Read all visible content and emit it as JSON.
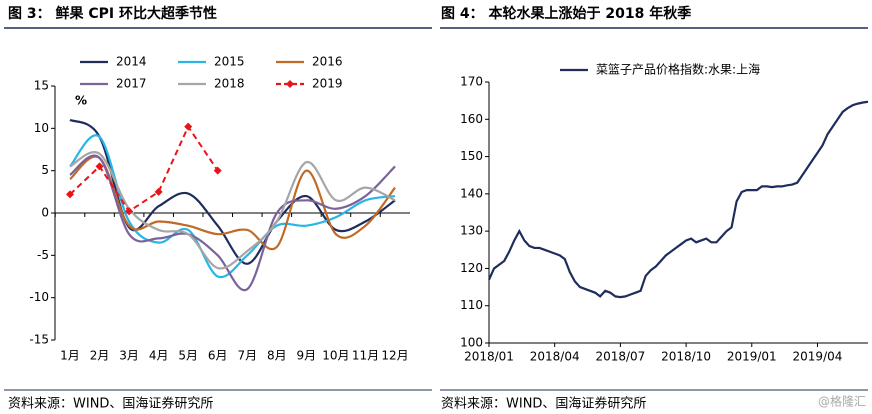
{
  "chart_data": [
    {
      "type": "line",
      "title": "图 3： 鲜果 CPI 环比大超季节性",
      "annotation": "%",
      "categories": [
        "1月",
        "2月",
        "3月",
        "4月",
        "5月",
        "6月",
        "7月",
        "8月",
        "9月",
        "10月",
        "11月",
        "12月"
      ],
      "ylim": [
        -15,
        15
      ],
      "yticks": [
        15,
        10,
        5,
        0,
        -5,
        -10,
        -15
      ],
      "series": [
        {
          "name": "2014",
          "color": "#1f2d5c",
          "values": [
            11,
            9,
            -1.7,
            0.8,
            2.3,
            -1.5,
            -6,
            -1,
            2,
            -2,
            -1,
            1.5
          ]
        },
        {
          "name": "2015",
          "color": "#29b5e8",
          "values": [
            5.5,
            9,
            -1,
            -3.5,
            -2,
            -7.5,
            -5,
            -1.5,
            -1.5,
            -0.5,
            1.5,
            2
          ]
        },
        {
          "name": "2016",
          "color": "#c06a26",
          "values": [
            4,
            6.5,
            -1.5,
            -1,
            -1.5,
            -2.5,
            -2,
            -4,
            5,
            -2.5,
            -1.5,
            3
          ]
        },
        {
          "name": "2017",
          "color": "#7b6399",
          "values": [
            4.5,
            6.5,
            -2.5,
            -3,
            -2.5,
            -5,
            -9,
            0,
            1.5,
            0.5,
            2,
            5.5
          ]
        },
        {
          "name": "2018",
          "color": "#a6a6a6",
          "values": [
            5.5,
            7,
            0.5,
            -2,
            -2.5,
            -6.5,
            -4.5,
            -1,
            6,
            1.5,
            3,
            1.5
          ]
        },
        {
          "name": "2019",
          "color": "#e8141a",
          "dashed": true,
          "markers": true,
          "values": [
            2.2,
            5.5,
            0.2,
            2.5,
            10.2,
            5,
            null,
            null,
            null,
            null,
            null,
            null
          ]
        }
      ],
      "source": "资料来源：WIND、国海证券研究所"
    },
    {
      "type": "line",
      "title": "图 4： 本轮水果上涨始于 2018 年秋季",
      "categories": [
        "2018/01",
        null,
        null,
        null,
        null,
        null,
        null,
        null,
        null,
        null,
        null,
        null,
        null,
        "2018/04",
        null,
        null,
        null,
        null,
        null,
        null,
        null,
        null,
        null,
        null,
        null,
        null,
        "2018/07",
        null,
        null,
        null,
        null,
        null,
        null,
        null,
        null,
        null,
        null,
        null,
        null,
        "2018/10",
        null,
        null,
        null,
        null,
        null,
        null,
        null,
        null,
        null,
        null,
        null,
        null,
        "2019/01",
        null,
        null,
        null,
        null,
        null,
        null,
        null,
        null,
        null,
        null,
        null,
        null,
        "2019/04",
        null,
        null,
        null,
        null,
        null,
        null,
        null,
        null,
        null,
        null
      ],
      "ylim": [
        100,
        170
      ],
      "yticks": [
        100,
        110,
        120,
        130,
        140,
        150,
        160,
        170
      ],
      "series": [
        {
          "name": "菜篮子产品价格指数:水果:上海",
          "color": "#1f2d5c",
          "values": [
            117,
            120,
            121,
            122,
            124.5,
            127.5,
            130,
            127.5,
            126,
            125.5,
            125.5,
            125,
            124.5,
            124,
            123.5,
            122.5,
            119,
            116.5,
            115,
            114.5,
            114,
            113.5,
            112.5,
            114,
            113.5,
            112.5,
            112.3,
            112.5,
            113,
            113.5,
            114,
            118,
            119.5,
            120.5,
            122,
            123.5,
            124.5,
            125.5,
            126.5,
            127.5,
            128,
            127,
            127.5,
            128,
            127,
            127,
            128.5,
            130,
            131,
            138,
            140.5,
            141,
            141,
            141,
            142,
            142,
            141.8,
            142,
            142,
            142.3,
            142.5,
            143,
            145,
            147,
            149,
            151,
            153,
            156,
            158,
            160,
            162,
            163,
            163.8,
            164.2,
            164.5,
            164.7
          ]
        }
      ],
      "source": "资料来源：WIND、国海证券研究所"
    }
  ],
  "watermark": "@格隆汇"
}
